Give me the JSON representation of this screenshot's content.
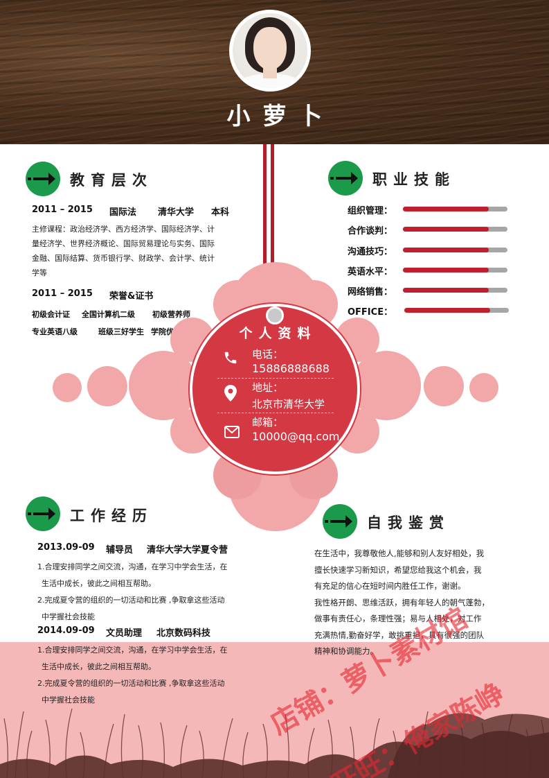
{
  "header": {
    "name": "小萝卜"
  },
  "education": {
    "title": "教育层次",
    "period": "2011 – 2015",
    "major": "国际法",
    "school": "清华大学",
    "degree": "本科",
    "courses": [
      "主修课程：政治经济学、西方经济学、国际经济学、计",
      "量经济学、世界经济概论、国际贸易理论与实务、国际",
      "金融、国际结算、货币银行学、财政学、会计学、统计",
      "学等"
    ],
    "honor_period": "2011 – 2015",
    "honor_title": "荣誉&证书",
    "certs_row1": [
      "初级会计证",
      "全国计算机二级",
      "初级营养师"
    ],
    "certs_row2": [
      "专业英语八级",
      "班级三好学生",
      "学院优秀党员"
    ]
  },
  "skills": {
    "title": "职业技能",
    "items": [
      {
        "label": "组织管理：",
        "level": 0.82
      },
      {
        "label": "合作谈判：",
        "level": 0.82
      },
      {
        "label": "沟通技巧：",
        "level": 0.82
      },
      {
        "label": "英语水平：",
        "level": 0.82
      },
      {
        "label": "网络销售：",
        "level": 0.82
      },
      {
        "label": "OFFICE：",
        "level": 0.82
      }
    ],
    "colors": {
      "fill": "#c0202d",
      "track": "#a6a6a6"
    }
  },
  "profile": {
    "title": "个人资料",
    "phone_label": "电话：",
    "phone": "15886888688",
    "address_label": "地址：",
    "address": "北京市清华大学",
    "email_label": "邮箱：",
    "email": "10000@qq.com"
  },
  "work": {
    "title": "工作经历",
    "jobs": [
      {
        "date": "2013.09-09",
        "role": "辅导员",
        "org": "清华大学大学夏令营",
        "lines": [
          "1.合理安排同学之间交流，沟通，在学习中学会生活，在",
          "生活中成长，彼此之间相互帮助。",
          "2.完成夏令营的组织的一切活动和比赛 ,争取拿这些活动",
          "中学握社会技能"
        ]
      },
      {
        "date": "2014.09-09",
        "role": "文员助理",
        "org": "北京数码科技",
        "lines": [
          "1.合理安排同学之间交流，沟通，在学习中学会生活，在",
          "生活中成长，彼此之间相互帮助。",
          "2.完成夏令营的组织的一切活动和比赛 ,争取拿这些活动",
          "中学握社会技能"
        ]
      }
    ]
  },
  "self": {
    "title": "自我鉴赏",
    "lines": [
      "在生活中，我尊敬他人,能够和别人友好相处，我",
      "擅长快速学习新知识，希望您给我这个机会，我",
      "有充足的信心在短时间内胜任工作，谢谢。",
      "我性格开朗、思维活跃，拥有年轻人的朝气蓬勃，",
      "做事有责任心，条理性强；易与人相处，对工作",
      "充满热情,勤奋好学，敢挑重担，具有很强的团队",
      "精神和协调能力。"
    ]
  },
  "watermark": {
    "line1": "店铺：萝卜素材馆",
    "line2": "旺旺：俺家陈峥"
  },
  "colors": {
    "accent_red": "#d33843",
    "green": "#1a9a4a",
    "pink": "#f2a7a8"
  }
}
